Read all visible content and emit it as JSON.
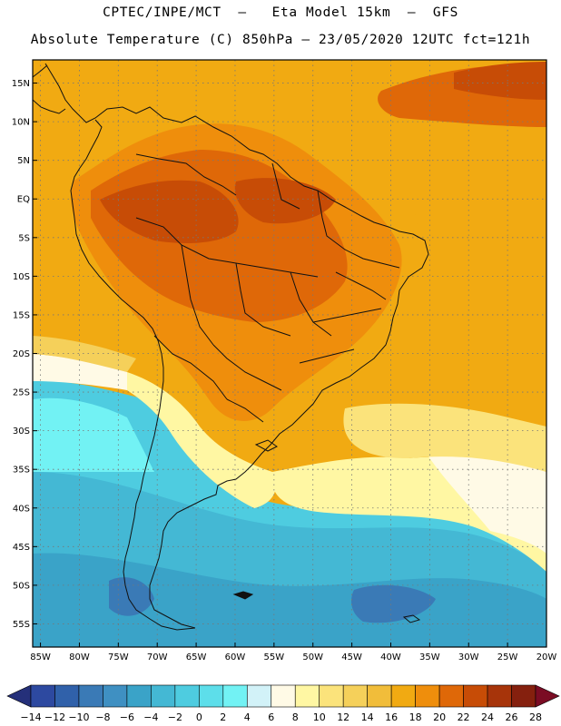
{
  "header": {
    "line1": "CPTEC/INPE/MCT  —   Eta Model 15km  —  GFS",
    "line2": "Absolute Temperature (C) 850hPa — 23/05/2020 12UTC fct=121h"
  },
  "map": {
    "lat_range": [
      -58,
      18
    ],
    "lon_range": [
      -86,
      -20
    ],
    "lat_ticks": [
      {
        "value": 15,
        "label": "15N"
      },
      {
        "value": 10,
        "label": "10N"
      },
      {
        "value": 5,
        "label": "5N"
      },
      {
        "value": 0,
        "label": "EQ"
      },
      {
        "value": -5,
        "label": "5S"
      },
      {
        "value": -10,
        "label": "10S"
      },
      {
        "value": -15,
        "label": "15S"
      },
      {
        "value": -20,
        "label": "20S"
      },
      {
        "value": -25,
        "label": "25S"
      },
      {
        "value": -30,
        "label": "30S"
      },
      {
        "value": -35,
        "label": "35S"
      },
      {
        "value": -40,
        "label": "40S"
      },
      {
        "value": -45,
        "label": "45S"
      },
      {
        "value": -50,
        "label": "50S"
      },
      {
        "value": -55,
        "label": "55S"
      }
    ],
    "lon_ticks": [
      {
        "value": -85,
        "label": "85W"
      },
      {
        "value": -80,
        "label": "80W"
      },
      {
        "value": -75,
        "label": "75W"
      },
      {
        "value": -70,
        "label": "70W"
      },
      {
        "value": -65,
        "label": "65W"
      },
      {
        "value": -60,
        "label": "60W"
      },
      {
        "value": -55,
        "label": "55W"
      },
      {
        "value": -50,
        "label": "50W"
      },
      {
        "value": -45,
        "label": "45W"
      },
      {
        "value": -40,
        "label": "40W"
      },
      {
        "value": -35,
        "label": "35W"
      },
      {
        "value": -30,
        "label": "30W"
      },
      {
        "value": -25,
        "label": "25W"
      },
      {
        "value": -20,
        "label": "20W"
      }
    ]
  },
  "colorbar": {
    "labels": [
      "-14",
      "-12",
      "-10",
      "-8",
      "-6",
      "-4",
      "-2",
      "0",
      "2",
      "4",
      "6",
      "8",
      "10",
      "12",
      "14",
      "16",
      "18",
      "20",
      "22",
      "24",
      "26",
      "28"
    ],
    "low_color": "#25307a",
    "high_color": "#7b0c24",
    "colors": [
      "#2d49a0",
      "#3061aa",
      "#3a7ab6",
      "#3f90c2",
      "#3aa3c8",
      "#44b8d4",
      "#4ecce0",
      "#5ddeea",
      "#72f2f4",
      "#d2f2f8",
      "#fffae6",
      "#fff7a3",
      "#fbe37b",
      "#f5d05a",
      "#f1bd3a",
      "#f1aa12",
      "#ef8e0c",
      "#df6808",
      "#c74c06",
      "#a7340a",
      "#85200e"
    ]
  }
}
